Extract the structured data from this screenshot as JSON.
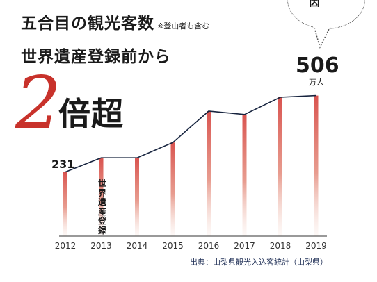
{
  "header": {
    "title_line1": "五合目の観光客数",
    "note": "※登山者も含む",
    "title_line2": "世界遺産登録前から",
    "highlight_number": "2",
    "highlight_suffix": "倍超"
  },
  "bubble": {
    "text": "因"
  },
  "labels": {
    "first_value": "231",
    "last_value": "506",
    "unit": "万人",
    "event_label": "世界遺産登録"
  },
  "source": "出典：山梨県観光入込客統計（山梨県）",
  "colors": {
    "bar": "#d9534f",
    "line": "#17243f",
    "accent": "#c8322b"
  },
  "chart_data": {
    "type": "bar",
    "categories": [
      "2012",
      "2013",
      "2014",
      "2015",
      "2016",
      "2017",
      "2018",
      "2019"
    ],
    "values": [
      231,
      282,
      282,
      337,
      450,
      438,
      500,
      506
    ],
    "unit": "万人",
    "ylim": [
      0,
      520
    ],
    "annotations": [
      {
        "category": "2012",
        "text": "231"
      },
      {
        "category": "2019",
        "text": "506"
      },
      {
        "category": "2013",
        "text": "世界遺産登録"
      }
    ],
    "grid": false,
    "legend": "none"
  }
}
